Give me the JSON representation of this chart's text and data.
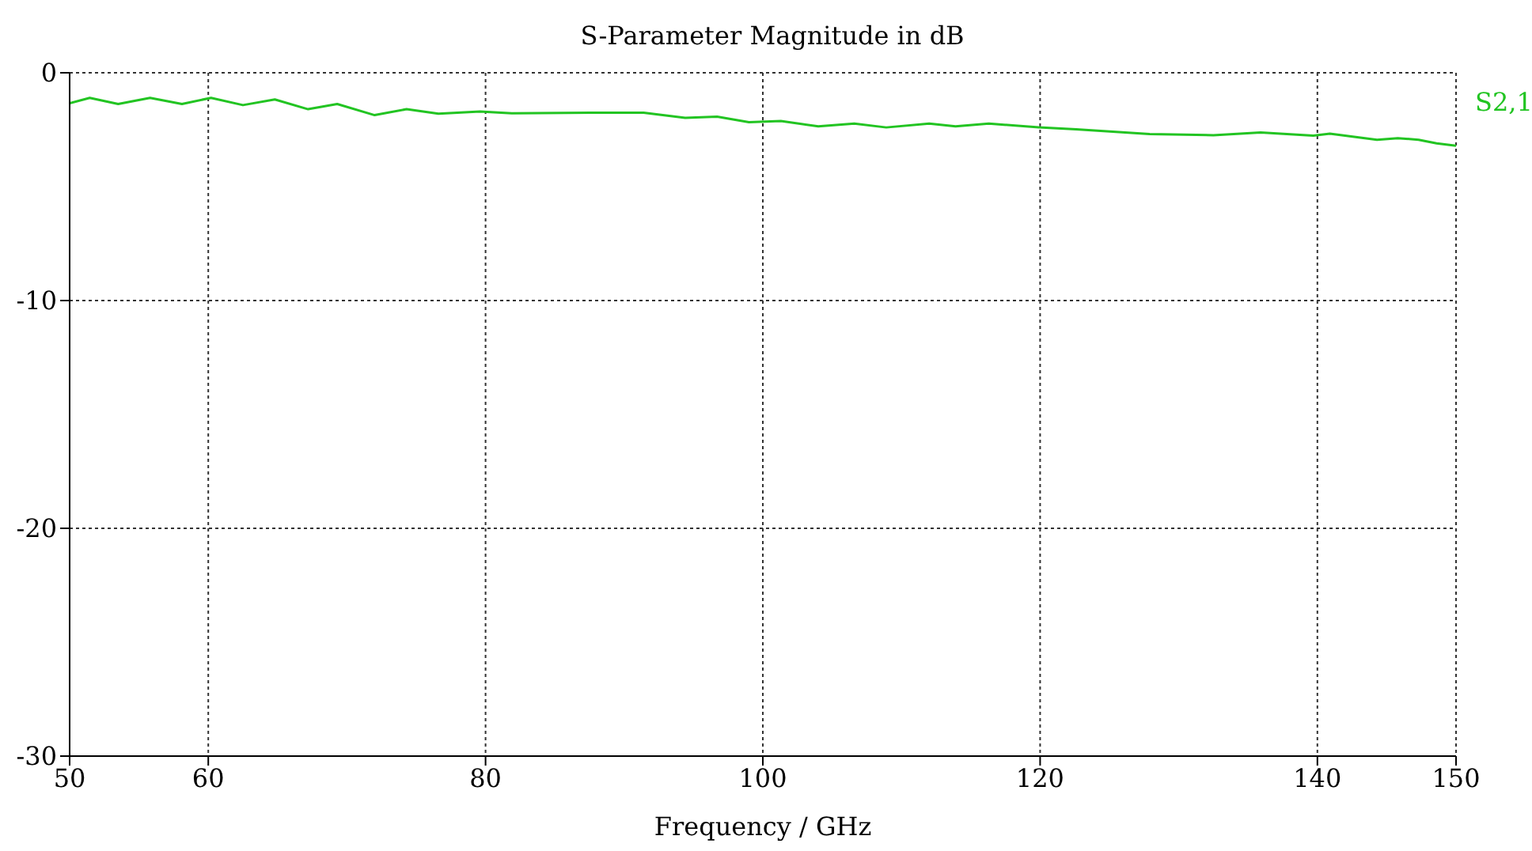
{
  "chart_data": {
    "type": "line",
    "title": "S-Parameter Magnitude in dB",
    "xlabel": "Frequency / GHz",
    "x": [
      50,
      51.45,
      53.5,
      55.8,
      58.1,
      60.2,
      62.5,
      64.8,
      67.2,
      69.3,
      72.0,
      74.3,
      76.6,
      79.6,
      81.9,
      87.6,
      91.4,
      94.4,
      96.7,
      99.0,
      101.3,
      104.0,
      106.6,
      108.9,
      112.0,
      113.9,
      116.3,
      119.9,
      122.6,
      127.9,
      132.5,
      135.9,
      139.7,
      140.9,
      144.3,
      145.8,
      147.3,
      148.6,
      150
    ],
    "series": [
      {
        "name": "S2,1",
        "color": "#22c422",
        "values": [
          -1.34,
          -1.1,
          -1.37,
          -1.1,
          -1.37,
          -1.1,
          -1.42,
          -1.17,
          -1.6,
          -1.37,
          -1.86,
          -1.6,
          -1.8,
          -1.7,
          -1.78,
          -1.75,
          -1.75,
          -1.98,
          -1.93,
          -2.17,
          -2.12,
          -2.35,
          -2.23,
          -2.4,
          -2.23,
          -2.35,
          -2.23,
          -2.4,
          -2.48,
          -2.69,
          -2.74,
          -2.62,
          -2.76,
          -2.67,
          -2.94,
          -2.87,
          -2.94,
          -3.1,
          -3.2
        ]
      }
    ],
    "xlim": [
      50,
      150
    ],
    "xticks": [
      50,
      60,
      80,
      100,
      120,
      140,
      150
    ],
    "ylim": [
      -30,
      0
    ],
    "yticks": [
      -30,
      -20,
      -10,
      0
    ],
    "grid": true,
    "legend": false,
    "marker": "none",
    "line_style": "solid"
  }
}
